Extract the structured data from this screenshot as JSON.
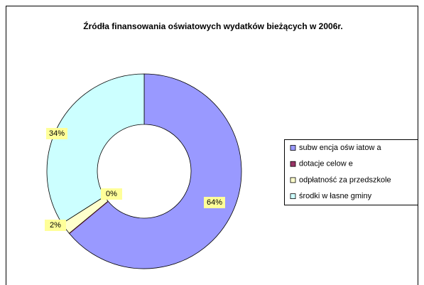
{
  "chart_data": {
    "type": "donut",
    "title": "Źródła finansowania oświatowych wydatków bieżących w 2006r.",
    "categories": [
      "subw encja ośw iatow a",
      "dotacje celow e",
      "odpłatność za przedszkole",
      "środki w łasne gminy"
    ],
    "values": [
      64,
      0,
      2,
      34
    ],
    "value_labels": [
      "64%",
      "0%",
      "2%",
      "34%"
    ],
    "colors": [
      "#9999ff",
      "#993366",
      "#ffffcc",
      "#ccffff"
    ],
    "legend": "right"
  }
}
